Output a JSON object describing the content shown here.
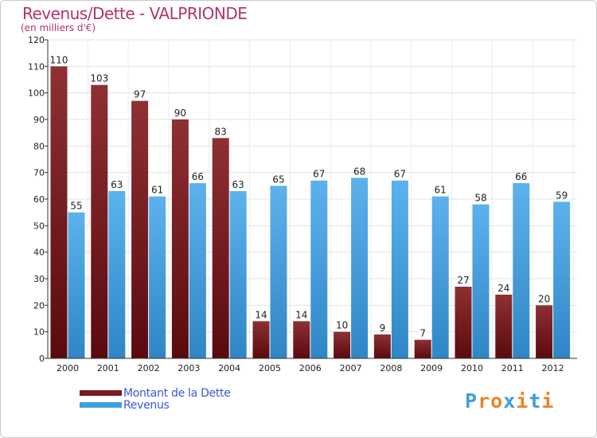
{
  "chart_data": {
    "type": "bar",
    "title": "Revenus/Dette - VALPRIONDE",
    "subtitle": "(en milliers d'€)",
    "categories": [
      "2000",
      "2001",
      "2002",
      "2003",
      "2004",
      "2005",
      "2006",
      "2007",
      "2008",
      "2009",
      "2010",
      "2011",
      "2012"
    ],
    "series": [
      {
        "name": "Montant de la Dette",
        "color": "#7a1a1e",
        "values": [
          110,
          103,
          97,
          90,
          83,
          14,
          14,
          10,
          9,
          7,
          27,
          24,
          20
        ]
      },
      {
        "name": "Revenus",
        "color": "#3f9ee0",
        "values": [
          55,
          63,
          61,
          66,
          63,
          65,
          67,
          68,
          67,
          61,
          58,
          66,
          59
        ]
      }
    ],
    "ylim": [
      0,
      120
    ],
    "yticks": [
      0,
      10,
      20,
      30,
      40,
      50,
      60,
      70,
      80,
      90,
      100,
      110,
      120
    ],
    "grid": true,
    "legend_position": "bottom-left",
    "data_labels": true
  },
  "logo": {
    "text": "Proxiti",
    "colors": [
      "#3f9ee0",
      "#e8862a",
      "#e8862a",
      "#3f9ee0",
      "#e8862a",
      "#3f9ee0",
      "#e8862a"
    ]
  }
}
